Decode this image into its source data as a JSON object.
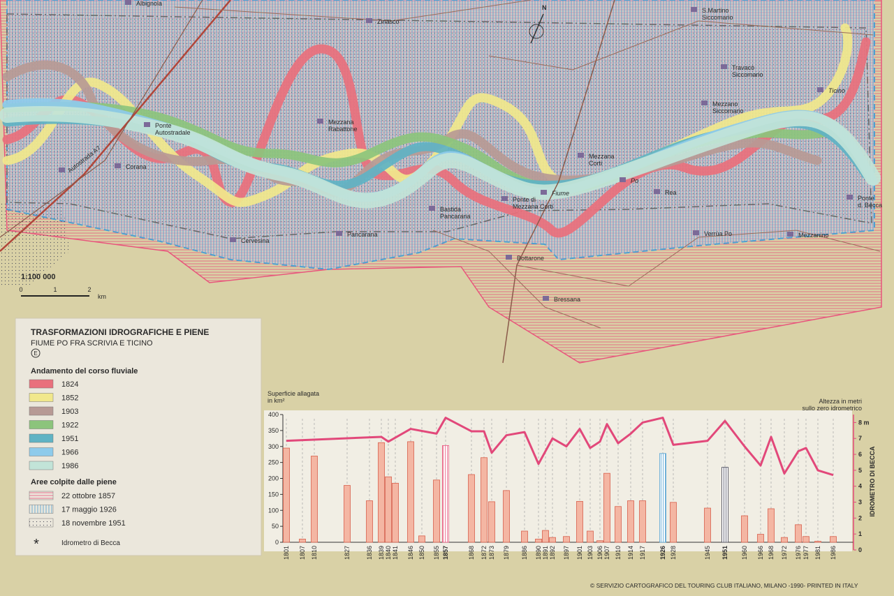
{
  "map": {
    "labels": [
      {
        "lines": [
          "Albignola"
        ]
      },
      {
        "lines": [
          "Zinasco"
        ]
      },
      {
        "lines": [
          "S.Martino",
          "Siccomario"
        ]
      },
      {
        "lines": [
          "Travacò",
          "Siccomario"
        ]
      },
      {
        "lines": [
          "Mezzano",
          "Siccomario"
        ]
      },
      {
        "lines": [
          "Ticino"
        ]
      },
      {
        "lines": [
          "Mezzana",
          "Rabattone"
        ]
      },
      {
        "lines": [
          "Ponte",
          "Autostradale"
        ]
      },
      {
        "lines": [
          "Autostrada A7"
        ]
      },
      {
        "lines": [
          "Corana"
        ]
      },
      {
        "lines": [
          "Mezzana",
          "Corti"
        ]
      },
      {
        "lines": [
          "Fiume"
        ]
      },
      {
        "lines": [
          "Po"
        ]
      },
      {
        "lines": [
          "Rea"
        ]
      },
      {
        "lines": [
          "Ponte di",
          "Mezzana Corti"
        ]
      },
      {
        "lines": [
          "Bastida",
          "Pancarana"
        ]
      },
      {
        "lines": [
          "Cervesina"
        ]
      },
      {
        "lines": [
          "Pancarana"
        ]
      },
      {
        "lines": [
          "Bottarone"
        ]
      },
      {
        "lines": [
          "Verrùa Po"
        ]
      },
      {
        "lines": [
          "Mezzanino"
        ]
      },
      {
        "lines": [
          "Ponte",
          "d. Becca"
        ]
      },
      {
        "lines": [
          "Bressana"
        ]
      }
    ],
    "north": "N",
    "scale": {
      "ratio": "1:100 000",
      "ticks": [
        "0",
        "1",
        "2"
      ],
      "unit": "km"
    }
  },
  "legend": {
    "title": "TRASFORMAZIONI IDROGRAFICHE E PIENE",
    "subtitle": "FIUME PO FRA SCRIVIA E TICINO",
    "edition": "E",
    "river_heading": "Andamento del corso fluviale",
    "river_items": [
      {
        "label": "1824",
        "color": "#e9707c"
      },
      {
        "label": "1852",
        "color": "#f1e88c"
      },
      {
        "label": "1903",
        "color": "#b79a95"
      },
      {
        "label": "1922",
        "color": "#8cc47c"
      },
      {
        "label": "1951",
        "color": "#5fb3c4"
      },
      {
        "label": "1966",
        "color": "#8ecbeb"
      },
      {
        "label": "1986",
        "color": "#c2e4d8"
      }
    ],
    "flood_heading": "Aree colpite dalle piene",
    "flood_items": [
      {
        "label": "22 ottobre 1857",
        "color": "#e8557c"
      },
      {
        "label": "17 maggio 1926",
        "color": "#4f9fd0"
      },
      {
        "label": "18 novembre 1951",
        "color": "#4a4a5a"
      }
    ],
    "gauge": {
      "symbol": "*",
      "label": "Idrometro di Becca"
    }
  },
  "chart_data": {
    "type": "bar",
    "ylabel": [
      "Superficie allagata",
      "in km²"
    ],
    "y2label": [
      "Altezza in metri",
      "sullo zero idrometrico"
    ],
    "y2title": "IDROMETRO DI BECCA",
    "categories": [
      "1801",
      "1807",
      "1810",
      "1827",
      "1836",
      "1839",
      "1840",
      "1841",
      "1846",
      "1850",
      "1855",
      "1857",
      "1868",
      "1872",
      "1873",
      "1879",
      "1886",
      "1890",
      "1891",
      "1892",
      "1897",
      "1901",
      "1903",
      "1906",
      "1907",
      "1910",
      "1914",
      "1917",
      "1926",
      "1928",
      "1945",
      "1951",
      "1960",
      "1966",
      "1968",
      "1972",
      "1976",
      "1977",
      "1981",
      "1986"
    ],
    "series": [
      {
        "color": "#f4b6a3",
        "values": [
          295,
          10,
          270,
          178,
          130,
          312,
          205,
          185,
          315,
          20,
          195,
          303,
          212,
          265,
          127,
          162,
          35,
          10,
          37,
          15,
          18,
          128,
          35,
          5,
          216,
          112,
          130,
          130,
          278,
          125,
          107,
          235,
          83,
          25,
          105,
          15,
          55,
          18,
          3,
          18
        ]
      },
      {
        "type": "line",
        "axis": "y2",
        "color": "#e2487a",
        "x": [
          "1801",
          "1839",
          "1840",
          "1846",
          "1855",
          "1857",
          "1868",
          "1872",
          "1873",
          "1879",
          "1886",
          "1890",
          "1892",
          "1897",
          "1901",
          "1903",
          "1906",
          "1907",
          "1910",
          "1914",
          "1917",
          "1926",
          "1928",
          "1945",
          "1951",
          "1960",
          "1966",
          "1968",
          "1972",
          "1976",
          "1977",
          "1981",
          "1986"
        ],
        "values": [
          6.85,
          7.1,
          6.8,
          7.6,
          7.3,
          8.3,
          7.45,
          7.45,
          6.1,
          7.2,
          7.4,
          5.4,
          7.0,
          6.5,
          7.6,
          6.4,
          6.8,
          7.9,
          6.7,
          7.3,
          8.0,
          8.3,
          6.6,
          6.85,
          8.1,
          6.5,
          5.3,
          7.1,
          4.8,
          6.2,
          6.4,
          5.0,
          4.7
        ]
      }
    ],
    "highlights": [
      {
        "category": "1857",
        "color": "#e8557c"
      },
      {
        "category": "1926",
        "color": "#4f9fd0"
      },
      {
        "category": "1951",
        "color": "#4a4a5a"
      }
    ],
    "ylim": [
      0,
      400
    ],
    "yticks": [
      0,
      50,
      100,
      150,
      200,
      250,
      300,
      350,
      400
    ],
    "y2lim": [
      0,
      8.5
    ],
    "y2ticks": [
      0,
      1,
      2,
      3,
      4,
      5,
      6,
      7,
      {
        "value": 8,
        "label": "8 m"
      }
    ]
  },
  "footer": "© SERVIZIO CARTOGRAFICO DEL TOURING CLUB ITALIANO, MILANO -1990- PRINTED IN ITALY"
}
